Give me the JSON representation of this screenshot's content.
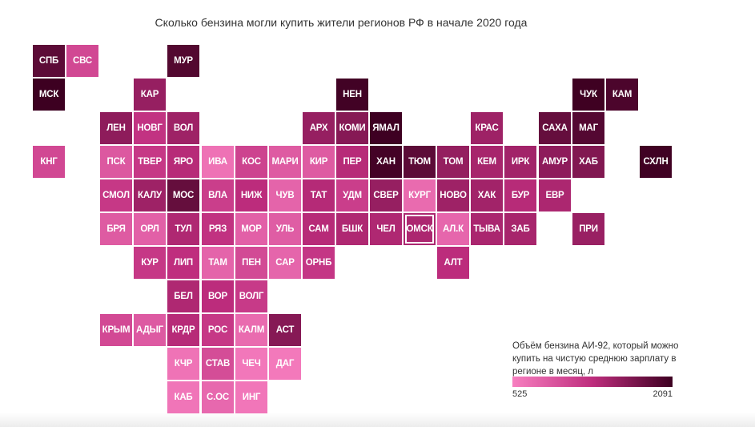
{
  "chart_data": {
    "type": "heatmap",
    "title": "Сколько бензина могли купить жители регионов РФ в начале 2020 года",
    "legend": {
      "title": "Объём бензина АИ-92, который можно купить на чистую среднюю зарплату в регионе в месяц, л",
      "min": 525,
      "max": 2091,
      "min_label": "525",
      "max_label": "2091",
      "color_low": "#f77fc0",
      "color_high": "#3d0021"
    },
    "cells": [
      {
        "label": "СПБ",
        "col": 0,
        "row": 0,
        "value": 1900
      },
      {
        "label": "СВС",
        "col": 1,
        "row": 0,
        "value": 1050
      },
      {
        "label": "МУР",
        "col": 4,
        "row": 0,
        "value": 1960
      },
      {
        "label": "МСК",
        "col": 0,
        "row": 1,
        "value": 2091
      },
      {
        "label": "КАР",
        "col": 3,
        "row": 1,
        "value": 1550
      },
      {
        "label": "НЕН",
        "col": 9,
        "row": 1,
        "value": 2060
      },
      {
        "label": "ЧУК",
        "col": 16,
        "row": 1,
        "value": 2080
      },
      {
        "label": "КАМ",
        "col": 17,
        "row": 1,
        "value": 2000
      },
      {
        "label": "ЛЕН",
        "col": 2,
        "row": 2,
        "value": 1600
      },
      {
        "label": "НОВГ",
        "col": 3,
        "row": 2,
        "value": 1250
      },
      {
        "label": "ВОЛ",
        "col": 4,
        "row": 2,
        "value": 1500
      },
      {
        "label": "АРХ",
        "col": 8,
        "row": 2,
        "value": 1550
      },
      {
        "label": "КОМИ",
        "col": 9,
        "row": 2,
        "value": 1650
      },
      {
        "label": "ЯМАЛ",
        "col": 10,
        "row": 2,
        "value": 2085
      },
      {
        "label": "КРАС",
        "col": 13,
        "row": 2,
        "value": 1500
      },
      {
        "label": "САХА",
        "col": 15,
        "row": 2,
        "value": 1850
      },
      {
        "label": "МАГ",
        "col": 16,
        "row": 2,
        "value": 1950
      },
      {
        "label": "КНГ",
        "col": 0,
        "row": 3,
        "value": 1050
      },
      {
        "label": "ПСК",
        "col": 2,
        "row": 3,
        "value": 900
      },
      {
        "label": "ТВЕР",
        "col": 3,
        "row": 3,
        "value": 1200
      },
      {
        "label": "ЯРО",
        "col": 4,
        "row": 3,
        "value": 1350
      },
      {
        "label": "ИВА",
        "col": 5,
        "row": 3,
        "value": 650
      },
      {
        "label": "КОС",
        "col": 6,
        "row": 3,
        "value": 1100
      },
      {
        "label": "МАРИ",
        "col": 7,
        "row": 3,
        "value": 870
      },
      {
        "label": "КИР",
        "col": 8,
        "row": 3,
        "value": 870
      },
      {
        "label": "ПЕР",
        "col": 9,
        "row": 3,
        "value": 1350
      },
      {
        "label": "ХАН",
        "col": 10,
        "row": 3,
        "value": 2050
      },
      {
        "label": "ТЮМ",
        "col": 11,
        "row": 3,
        "value": 1900
      },
      {
        "label": "ТОМ",
        "col": 12,
        "row": 3,
        "value": 1560
      },
      {
        "label": "КЕМ",
        "col": 13,
        "row": 3,
        "value": 1450
      },
      {
        "label": "ИРК",
        "col": 14,
        "row": 3,
        "value": 1480
      },
      {
        "label": "АМУР",
        "col": 15,
        "row": 3,
        "value": 1600
      },
      {
        "label": "ХАБ",
        "col": 16,
        "row": 3,
        "value": 1680
      },
      {
        "label": "СХЛН",
        "col": 18,
        "row": 3,
        "value": 2070
      },
      {
        "label": "СМОЛ",
        "col": 2,
        "row": 4,
        "value": 1200
      },
      {
        "label": "КАЛУ",
        "col": 3,
        "row": 4,
        "value": 1500
      },
      {
        "label": "МОС",
        "col": 4,
        "row": 4,
        "value": 1850
      },
      {
        "label": "ВЛА",
        "col": 5,
        "row": 4,
        "value": 1150
      },
      {
        "label": "НИЖ",
        "col": 6,
        "row": 4,
        "value": 1320
      },
      {
        "label": "ЧУВ",
        "col": 7,
        "row": 4,
        "value": 780
      },
      {
        "label": "ТАТ",
        "col": 8,
        "row": 4,
        "value": 1360
      },
      {
        "label": "УДМ",
        "col": 9,
        "row": 4,
        "value": 1150
      },
      {
        "label": "СВЕР",
        "col": 10,
        "row": 4,
        "value": 1550
      },
      {
        "label": "КУРГ",
        "col": 11,
        "row": 4,
        "value": 720
      },
      {
        "label": "НОВО",
        "col": 12,
        "row": 4,
        "value": 1500
      },
      {
        "label": "ХАК",
        "col": 13,
        "row": 4,
        "value": 1480
      },
      {
        "label": "БУР",
        "col": 14,
        "row": 4,
        "value": 1350
      },
      {
        "label": "ЕВР",
        "col": 15,
        "row": 4,
        "value": 1420
      },
      {
        "label": "БРЯ",
        "col": 2,
        "row": 5,
        "value": 870
      },
      {
        "label": "ОРЛ",
        "col": 3,
        "row": 5,
        "value": 820
      },
      {
        "label": "ТУЛ",
        "col": 4,
        "row": 5,
        "value": 1400
      },
      {
        "label": "РЯЗ",
        "col": 5,
        "row": 5,
        "value": 1260
      },
      {
        "label": "МОР",
        "col": 6,
        "row": 5,
        "value": 820
      },
      {
        "label": "УЛЬ",
        "col": 7,
        "row": 5,
        "value": 850
      },
      {
        "label": "САМ",
        "col": 8,
        "row": 5,
        "value": 1350
      },
      {
        "label": "БШК",
        "col": 9,
        "row": 5,
        "value": 1400
      },
      {
        "label": "ЧЕЛ",
        "col": 10,
        "row": 5,
        "value": 1400
      },
      {
        "label": "ОМСК",
        "col": 11,
        "row": 5,
        "value": 1420,
        "outlined": true
      },
      {
        "label": "АЛ.К",
        "col": 12,
        "row": 5,
        "value": 760
      },
      {
        "label": "ТЫВА",
        "col": 13,
        "row": 5,
        "value": 1430
      },
      {
        "label": "ЗАБ",
        "col": 14,
        "row": 5,
        "value": 1450
      },
      {
        "label": "ПРИ",
        "col": 16,
        "row": 5,
        "value": 1530
      },
      {
        "label": "КУР",
        "col": 3,
        "row": 6,
        "value": 1200
      },
      {
        "label": "ЛИП",
        "col": 4,
        "row": 6,
        "value": 1300
      },
      {
        "label": "ТАМ",
        "col": 5,
        "row": 6,
        "value": 780
      },
      {
        "label": "ПЕН",
        "col": 6,
        "row": 6,
        "value": 1030
      },
      {
        "label": "САР",
        "col": 7,
        "row": 6,
        "value": 770
      },
      {
        "label": "ОРНБ",
        "col": 8,
        "row": 6,
        "value": 1220
      },
      {
        "label": "АЛТ",
        "col": 12,
        "row": 6,
        "value": 1320
      },
      {
        "label": "БЕЛ",
        "col": 4,
        "row": 7,
        "value": 1400
      },
      {
        "label": "ВОР",
        "col": 5,
        "row": 7,
        "value": 1320
      },
      {
        "label": "ВОЛГ",
        "col": 6,
        "row": 7,
        "value": 1180
      },
      {
        "label": "КРЫМ",
        "col": 2,
        "row": 8,
        "value": 1040
      },
      {
        "label": "АДЫГ",
        "col": 3,
        "row": 8,
        "value": 880
      },
      {
        "label": "КРДР",
        "col": 4,
        "row": 8,
        "value": 1350
      },
      {
        "label": "РОС",
        "col": 5,
        "row": 8,
        "value": 1200
      },
      {
        "label": "КАЛМ",
        "col": 6,
        "row": 8,
        "value": 720
      },
      {
        "label": "АСТ",
        "col": 7,
        "row": 8,
        "value": 1650
      },
      {
        "label": "КЧР",
        "col": 4,
        "row": 9,
        "value": 640
      },
      {
        "label": "СТАВ",
        "col": 5,
        "row": 9,
        "value": 1000
      },
      {
        "label": "ЧЕЧ",
        "col": 6,
        "row": 9,
        "value": 600
      },
      {
        "label": "ДАГ",
        "col": 7,
        "row": 9,
        "value": 580
      },
      {
        "label": "КАБ",
        "col": 4,
        "row": 10,
        "value": 620
      },
      {
        "label": "С.ОС",
        "col": 5,
        "row": 10,
        "value": 740
      },
      {
        "label": "ИНГ",
        "col": 6,
        "row": 10,
        "value": 610
      }
    ]
  }
}
